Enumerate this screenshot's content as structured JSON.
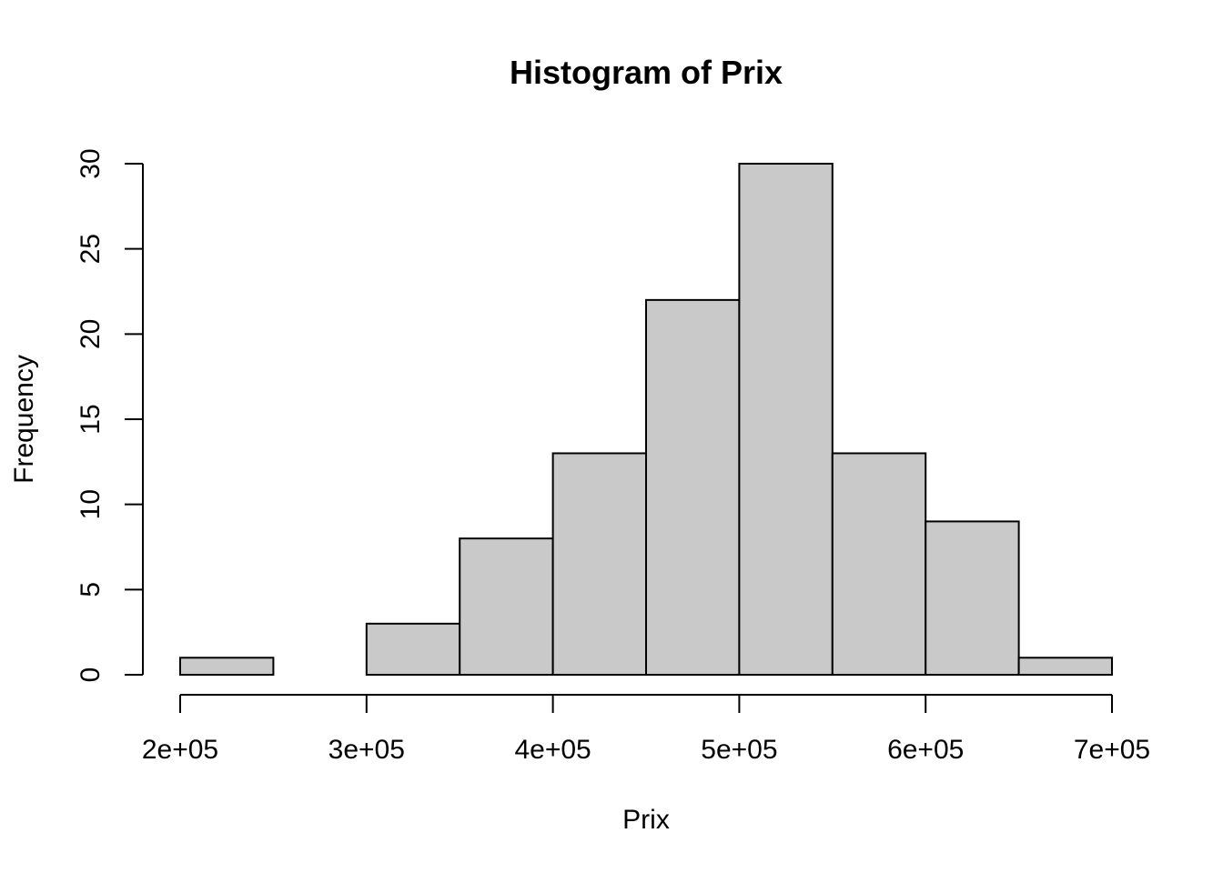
{
  "chart_data": {
    "type": "bar",
    "title": "Histogram of Prix",
    "xlabel": "Prix",
    "ylabel": "Frequency",
    "bar_color": "#C9C9C9",
    "edge_color": "#000000",
    "bins": [
      {
        "start": 200000,
        "end": 250000,
        "count": 1
      },
      {
        "start": 250000,
        "end": 300000,
        "count": 0
      },
      {
        "start": 300000,
        "end": 350000,
        "count": 3
      },
      {
        "start": 350000,
        "end": 400000,
        "count": 8
      },
      {
        "start": 400000,
        "end": 450000,
        "count": 13
      },
      {
        "start": 450000,
        "end": 500000,
        "count": 22
      },
      {
        "start": 500000,
        "end": 550000,
        "count": 30
      },
      {
        "start": 550000,
        "end": 600000,
        "count": 13
      },
      {
        "start": 600000,
        "end": 650000,
        "count": 9
      },
      {
        "start": 650000,
        "end": 700000,
        "count": 1
      }
    ],
    "xlim": [
      200000,
      700000
    ],
    "ylim": [
      0,
      30
    ],
    "x_ticks": [
      200000,
      300000,
      400000,
      500000,
      600000,
      700000
    ],
    "x_tick_labels": [
      "2e+05",
      "3e+05",
      "4e+05",
      "5e+05",
      "6e+05",
      "7e+05"
    ],
    "y_ticks": [
      0,
      5,
      10,
      15,
      20,
      25,
      30
    ],
    "y_tick_labels": [
      "0",
      "5",
      "10",
      "15",
      "20",
      "25",
      "30"
    ],
    "grid": false,
    "legend": "none"
  }
}
